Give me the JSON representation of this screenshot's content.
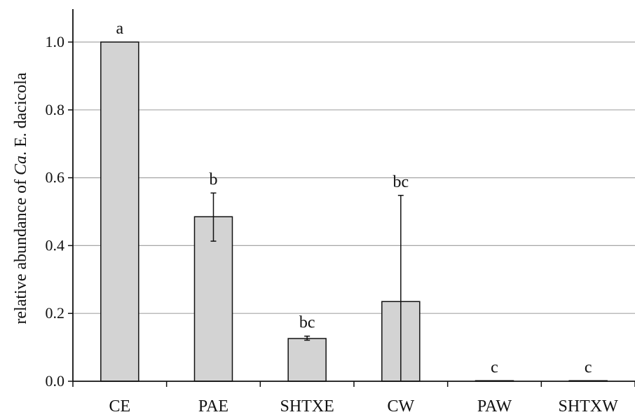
{
  "chart_data": {
    "type": "bar",
    "categories": [
      "CE",
      "PAE",
      "SHTXE",
      "CW",
      "PAW",
      "SHTXW"
    ],
    "values": [
      1.0,
      0.485,
      0.126,
      0.235,
      0.001,
      0.001
    ],
    "error_upper": [
      0,
      0.07,
      0.007,
      0.313,
      0,
      0
    ],
    "error_lower": [
      0,
      0.072,
      0.005,
      0.235,
      0,
      0
    ],
    "significance_labels": [
      "a",
      "b",
      "bc",
      "bc",
      "c",
      "c"
    ],
    "ylabel_parts": [
      "relative abundance of ",
      "Ca",
      ". E. dacicola"
    ],
    "ylim": [
      0,
      1.1
    ],
    "yticks": [
      0.0,
      0.2,
      0.4,
      0.6,
      0.8,
      1.0
    ],
    "ytick_labels": [
      "0.0",
      "0.2",
      "0.4",
      "0.6",
      "0.8",
      "1.0"
    ],
    "grid": true,
    "colors": {
      "bar_fill": "#d3d3d3",
      "bar_stroke": "#111111",
      "grid": "#a6a6a6",
      "axis": "#111111"
    }
  }
}
